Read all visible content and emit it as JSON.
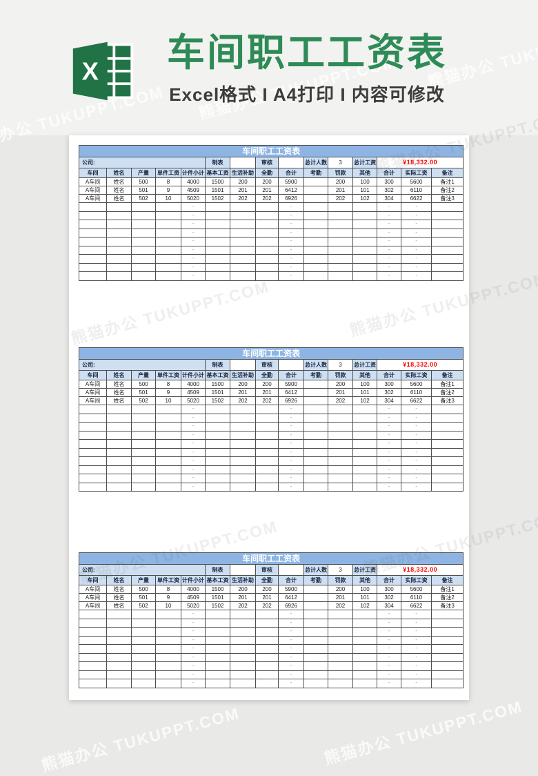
{
  "banner": {
    "title": "车间职工工资表",
    "subtitle": "Excel格式 I A4打印 I 内容可修改"
  },
  "watermark": {
    "text": "熊猫办公 TUKUPPT.COM"
  },
  "colors": {
    "banner_title_green": "#2e8b57",
    "excel_logo_green": "#217346",
    "sheet_title_bar_blue": "#8db4e3",
    "sheet_header_blue": "#cfdff2",
    "total_salary_red": "#ff0000"
  },
  "sheet": {
    "title": "车间职工工资表",
    "info_row": {
      "company": "公司:",
      "maker": "制表",
      "maker_value": "",
      "reviewer": "审核",
      "reviewer_value": "",
      "total_people": "总计人数",
      "total_people_value": "3",
      "total_salary": "总计工资",
      "total_salary_value": "¥18,332.00"
    },
    "columns": [
      "车间",
      "姓名",
      "产量",
      "单件工资",
      "计件小计",
      "基本工资",
      "生活补助",
      "全勤",
      "合计",
      "考勤",
      "罚款",
      "其他",
      "合计",
      "实际工资",
      "备注"
    ],
    "rows": [
      [
        "A车间",
        "姓名",
        "500",
        "8",
        "4000",
        "1500",
        "200",
        "200",
        "5900",
        "",
        "200",
        "100",
        "300",
        "5600",
        "备注1"
      ],
      [
        "A车间",
        "姓名",
        "501",
        "9",
        "4509",
        "1501",
        "201",
        "201",
        "6412",
        "",
        "201",
        "101",
        "302",
        "6110",
        "备注2"
      ],
      [
        "A车间",
        "姓名",
        "502",
        "10",
        "5020",
        "1502",
        "202",
        "202",
        "6926",
        "",
        "202",
        "102",
        "304",
        "6622",
        "备注3"
      ]
    ],
    "empty_row_counts": [
      9,
      10,
      9
    ],
    "dash_columns": [
      4,
      8,
      12,
      13
    ],
    "empty_dash": "-"
  }
}
